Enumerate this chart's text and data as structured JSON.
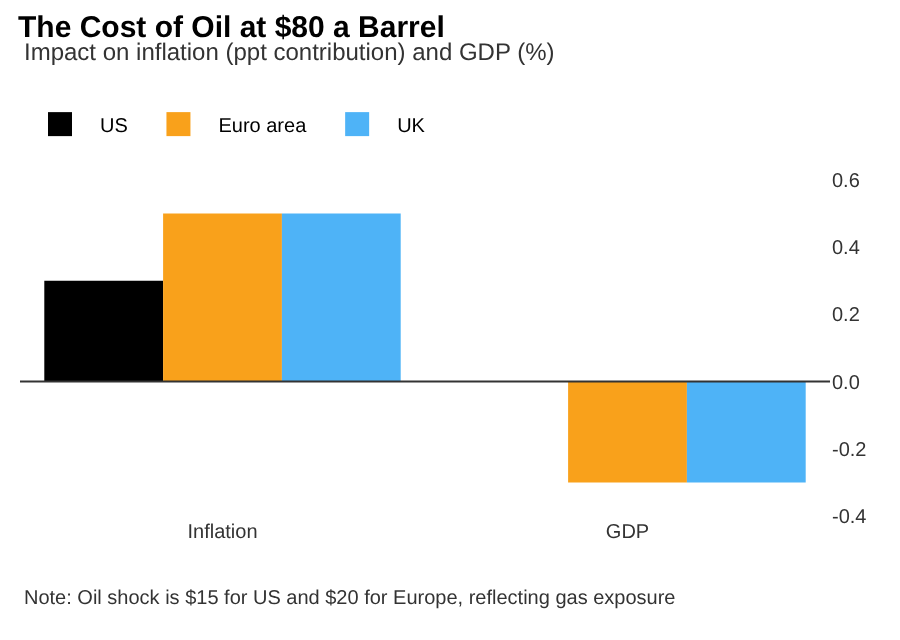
{
  "chart_data": {
    "type": "bar",
    "title": "The Cost of Oil at $80 a Barrel",
    "subtitle": "Impact on inflation (ppt contribution) and GDP (%)",
    "categories": [
      "Inflation",
      "GDP"
    ],
    "series": [
      {
        "name": "US",
        "color": "#000000",
        "values": [
          0.3,
          null
        ]
      },
      {
        "name": "Euro area",
        "color": "#f9a11b",
        "values": [
          0.5,
          -0.3
        ]
      },
      {
        "name": "UK",
        "color": "#4eb3f7",
        "values": [
          0.5,
          -0.3
        ]
      }
    ],
    "ylim": [
      -0.4,
      0.6
    ],
    "ref_lines": [
      {
        "axis": "y",
        "value": 0,
        "color": "#333333"
      }
    ],
    "yticks": [
      0.6,
      0.4,
      0.2,
      {
        "value": 0,
        "label": "0.0"
      },
      -0.2,
      -0.4
    ],
    "grid": false,
    "legend": "top left",
    "annotations": [
      "Note: Oil shock is $15 for US and $20 for Europe, reflecting gas exposure"
    ]
  }
}
